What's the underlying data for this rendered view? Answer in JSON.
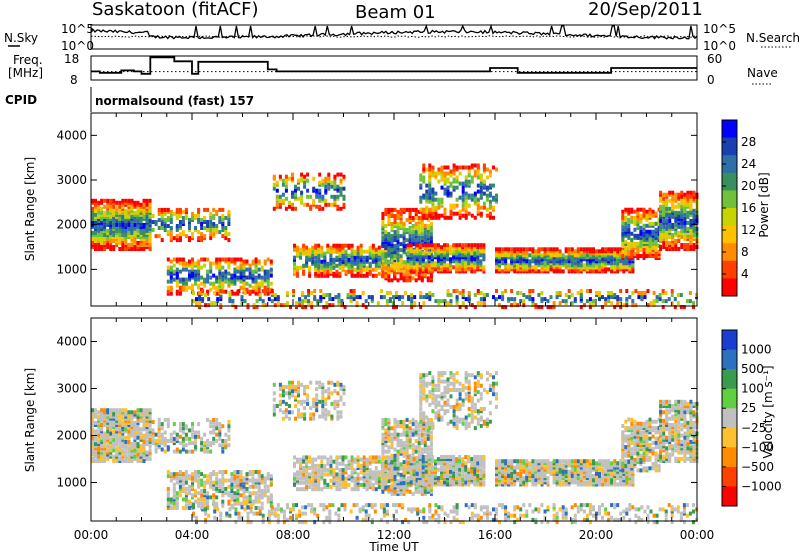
{
  "header": {
    "station": "Saskatoon (fitACF)",
    "beam": "Beam 01",
    "date": "20/Sep/2011",
    "mode_line": "normalsound (fast) 157"
  },
  "left_labels": {
    "nsky": "N.Sky",
    "freq_line1": "Freq.",
    "freq_line2": "[MHz]",
    "cpid": "CPID"
  },
  "right_labels": {
    "nsearch": "N.Search",
    "nave": "Nave"
  },
  "chart_data": [
    {
      "type": "line",
      "id": "noise",
      "series": [
        {
          "name": "N.Sky"
        },
        {
          "name": "N.Search"
        }
      ],
      "y_tick_labels": [
        "10^5",
        "10^0"
      ],
      "right_tick_labels": [
        "10^5",
        "10^0"
      ],
      "ylim_log10": [
        0,
        5
      ]
    },
    {
      "type": "line",
      "id": "freq",
      "series": [
        {
          "name": "Freq."
        },
        {
          "name": "Nave"
        }
      ],
      "left_ylim": [
        8,
        18
      ],
      "left_ticks": [
        "18",
        "13",
        "8"
      ],
      "right_ylim": [
        0,
        60
      ],
      "right_ticks": [
        "60",
        "30",
        "0"
      ],
      "freq_steps": [
        [
          0.0,
          11.6
        ],
        [
          0.35,
          11.0
        ],
        [
          1.2,
          12.0
        ],
        [
          1.7,
          11.6
        ],
        [
          2.0,
          10.6
        ],
        [
          2.35,
          17.4
        ],
        [
          3.3,
          15.8
        ],
        [
          4.0,
          10.6
        ],
        [
          4.25,
          15.6
        ],
        [
          7.0,
          12.4
        ],
        [
          7.35,
          11.6
        ],
        [
          15.8,
          13.0
        ],
        [
          16.9,
          11.0
        ],
        [
          20.6,
          13.0
        ],
        [
          21.7,
          13.0
        ],
        [
          24.0,
          13.0
        ]
      ],
      "nave_mean": 21
    },
    {
      "type": "heatmap",
      "id": "power",
      "xlim_hours": [
        0,
        24
      ],
      "x_tick_labels": [
        "00:00",
        "04:00",
        "08:00",
        "12:00",
        "16:00",
        "20:00",
        "00:00"
      ],
      "ylim": [
        180,
        4500
      ],
      "ylabel": "Slant Range [km]",
      "y_ticks": [
        1000,
        2000,
        3000,
        4000
      ],
      "colorbar": {
        "label": "Power [dB]",
        "ticks": [
          "4",
          "8",
          "12",
          "16",
          "20",
          "24",
          "28"
        ],
        "colors": [
          "#0000ff",
          "#1a3fb0",
          "#2e6fa8",
          "#3a8f5e",
          "#6fc03a",
          "#c8d400",
          "#ffc000",
          "#ff8c00",
          "#ff4000",
          "#ff0000"
        ]
      }
    },
    {
      "type": "heatmap",
      "id": "velocity",
      "xlim_hours": [
        0,
        24
      ],
      "x_tick_labels": [
        "00:00",
        "04:00",
        "08:00",
        "12:00",
        "16:00",
        "20:00",
        "00:00"
      ],
      "xlabel": "Time UT",
      "ylim": [
        180,
        4500
      ],
      "ylabel": "Slant Range [km]",
      "y_ticks": [
        1000,
        2000,
        3000,
        4000
      ],
      "colorbar": {
        "label": "Velocity [m s⁻¹]",
        "ticks": [
          "1000",
          "500",
          "100",
          "25",
          "−25",
          "−100",
          "−500",
          "−1000"
        ],
        "colors": [
          "#1a3fd0",
          "#2d6fc0",
          "#3a9a50",
          "#5fd040",
          "#c0c0c0",
          "#ffc030",
          "#ff8c00",
          "#ff4000",
          "#ff0000"
        ]
      }
    }
  ]
}
